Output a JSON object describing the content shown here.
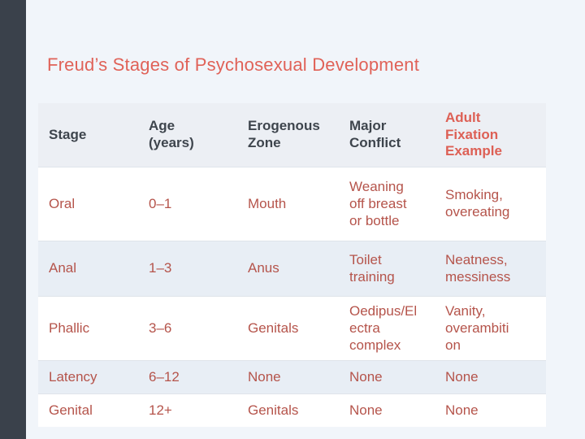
{
  "slide": {
    "title": "Freud’s Stages of Psychosexual Development",
    "palette": {
      "accent_bar": "#3a414b",
      "slide_background": "#f1f5fa",
      "title_red": "#e06258",
      "header_dark": "#3e454d",
      "header_red": "#dd6055",
      "body_red": "#b5544b",
      "band_row": "#e8eef5",
      "white_row": "#ffffff"
    }
  },
  "table": {
    "columns": [
      {
        "label": "Stage"
      },
      {
        "label": "Age\n(years)"
      },
      {
        "label": "Erogenous\nZone"
      },
      {
        "label": "Major\nConflict"
      },
      {
        "label": "Adult\nFixation\nExample"
      }
    ],
    "rows": [
      {
        "cells": [
          "Oral",
          "0–1",
          "Mouth",
          "Weaning\noff breast\nor bottle",
          "Smoking,\novereating"
        ]
      },
      {
        "cells": [
          "Anal",
          "1–3",
          "Anus",
          "Toilet\ntraining",
          "Neatness,\nmessiness"
        ]
      },
      {
        "cells": [
          "Phallic",
          "3–6",
          "Genitals",
          "Oedipus/El\nectra\ncomplex",
          "Vanity,\noverambiti\non"
        ]
      },
      {
        "cells": [
          "Latency",
          "6–12",
          "None",
          "None",
          "None"
        ]
      },
      {
        "cells": [
          "Genital",
          "12+",
          "Genitals",
          "None",
          "None"
        ]
      }
    ]
  }
}
